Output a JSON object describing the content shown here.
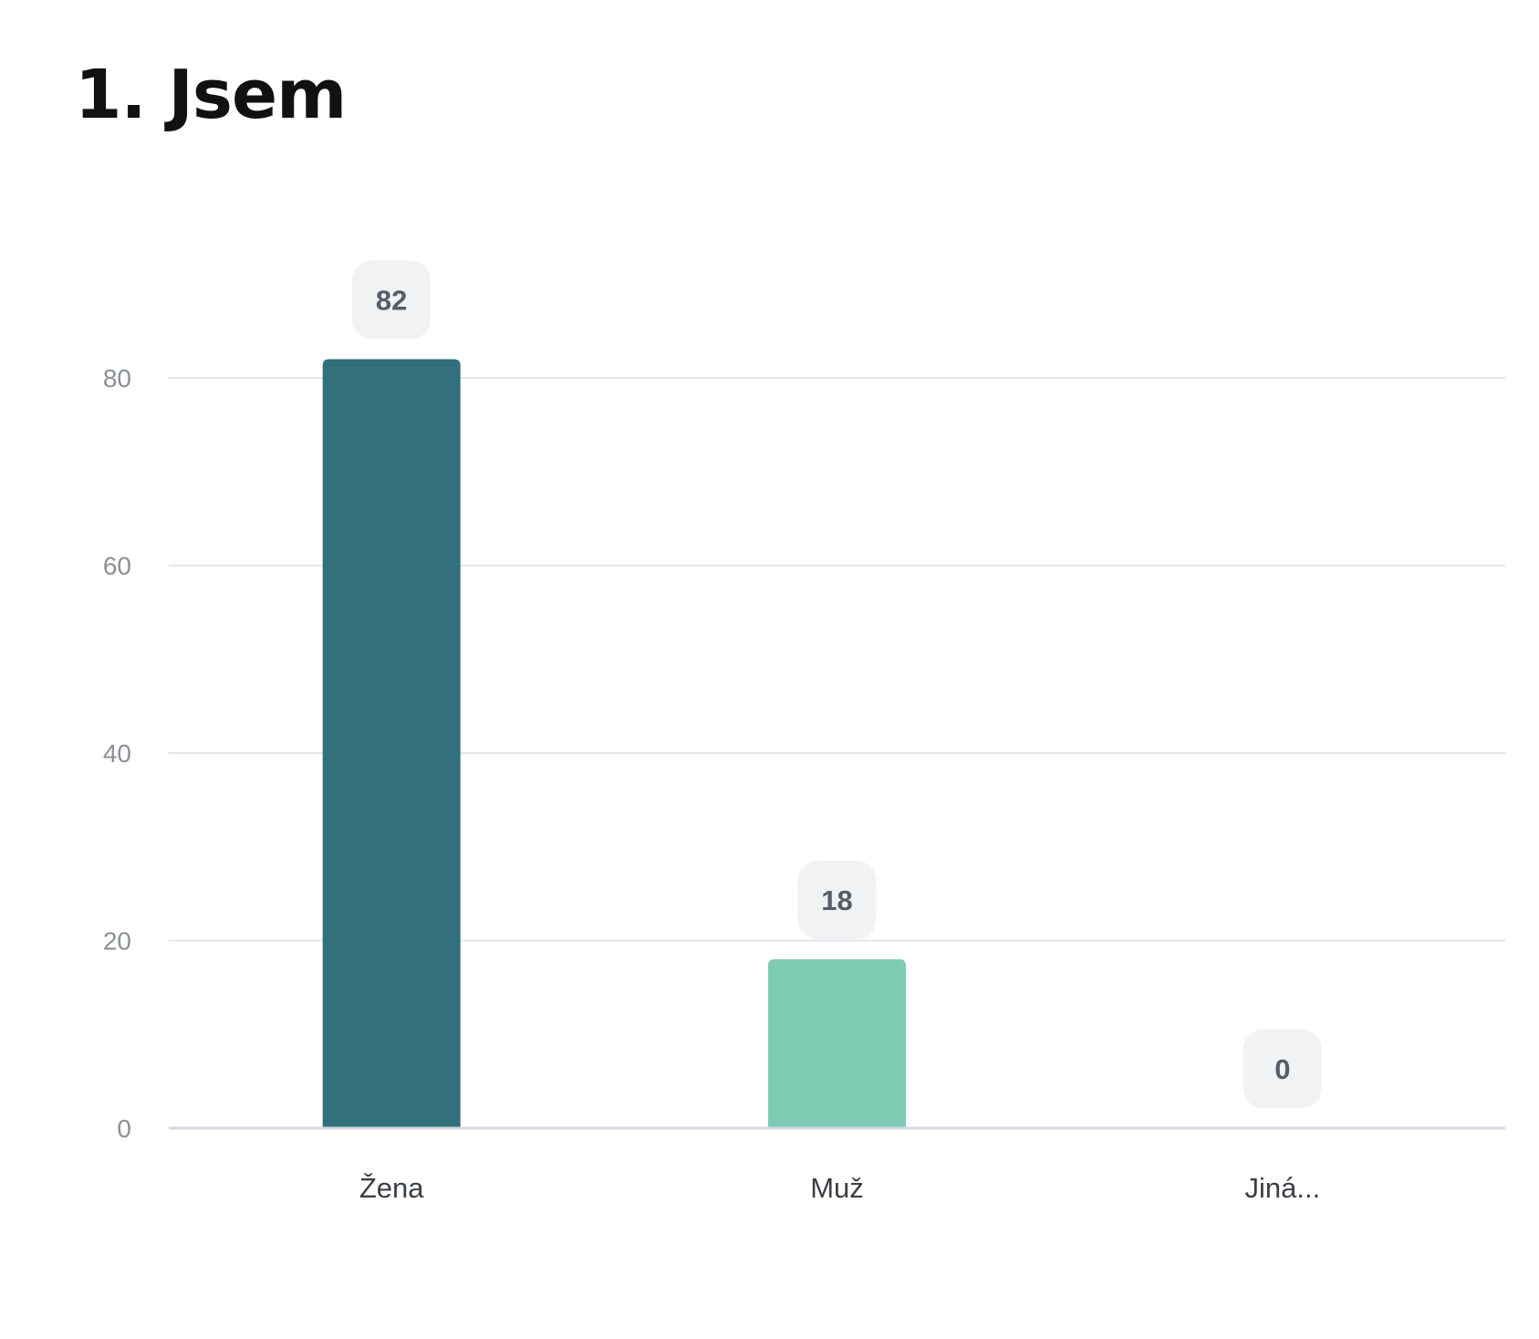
{
  "chart_data": {
    "type": "bar",
    "title": "1. Jsem",
    "categories": [
      "Žena",
      "Muž",
      "Jiná..."
    ],
    "values": [
      82,
      18,
      0
    ],
    "data_labels": [
      "82",
      "18",
      "0"
    ],
    "colors": [
      "#32707c",
      "#7ecbb4",
      "#32707c"
    ],
    "ylim": [
      0,
      90
    ],
    "yticks": [
      0,
      20,
      40,
      60,
      80
    ],
    "xlabel": "",
    "ylabel": "",
    "grid": true,
    "legend": "none"
  }
}
